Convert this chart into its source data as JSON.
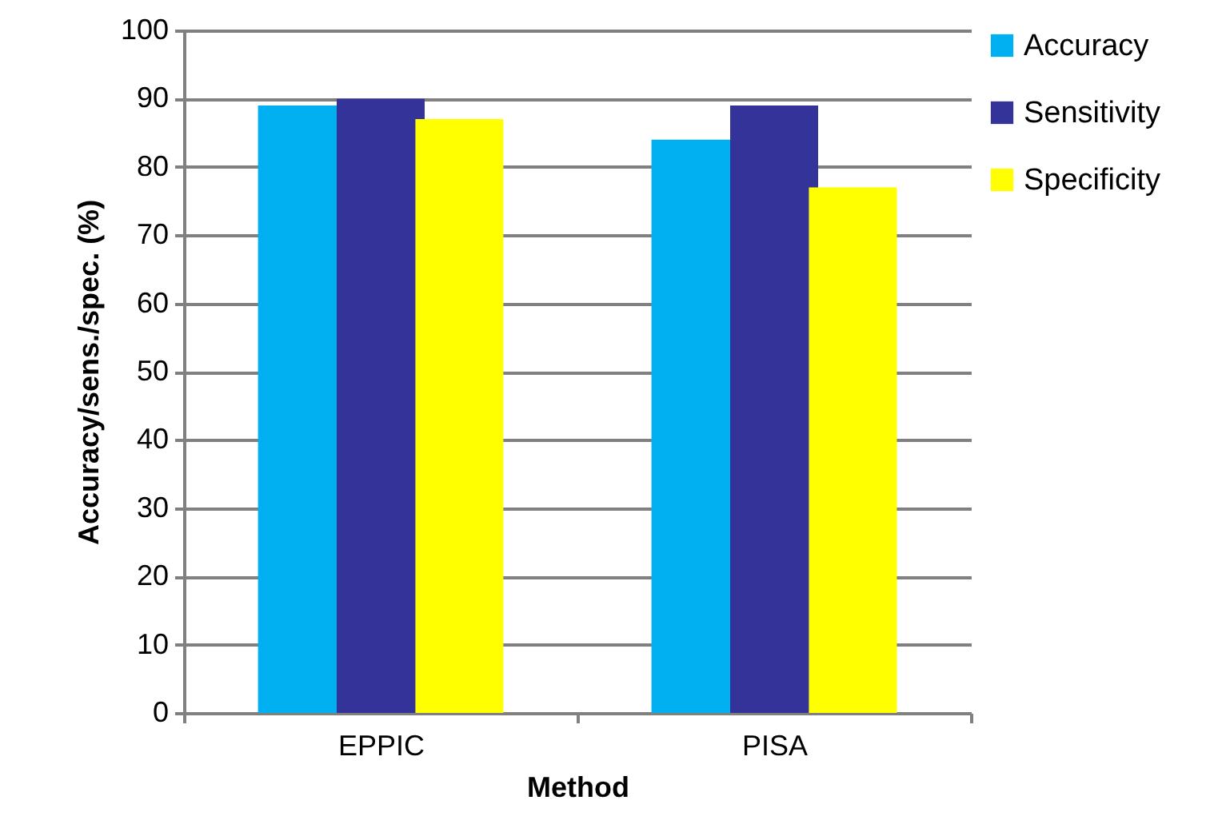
{
  "chart_data": {
    "type": "bar",
    "xlabel": "Method",
    "ylabel": "Accuracy/sens./spec. (%)",
    "categories": [
      "EPPIC",
      "PISA"
    ],
    "series": [
      {
        "name": "Accuracy",
        "color": "#00b0f0",
        "values": [
          89,
          84
        ]
      },
      {
        "name": "Sensitivity",
        "color": "#333399",
        "values": [
          90,
          89
        ]
      },
      {
        "name": "Specificity",
        "color": "#ffff00",
        "values": [
          87,
          77
        ]
      }
    ],
    "ylim": [
      0,
      100
    ],
    "yticks": [
      0,
      10,
      20,
      30,
      40,
      50,
      60,
      70,
      80,
      90,
      100
    ],
    "grid": "y",
    "legend": "right"
  }
}
